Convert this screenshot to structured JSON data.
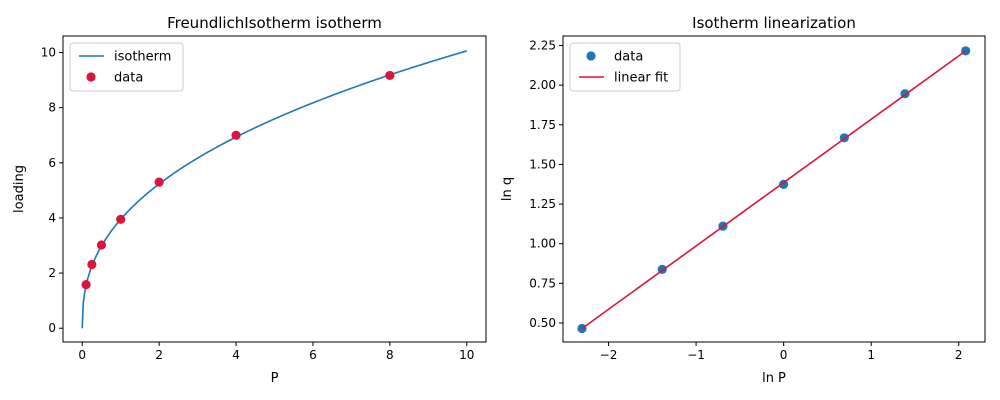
{
  "chart_data": [
    {
      "type": "line",
      "title": "FreundlichIsotherm isotherm",
      "xlabel": "P",
      "ylabel": "loading",
      "xlim": [
        -0.5,
        10.5
      ],
      "ylim": [
        -0.5,
        10.6
      ],
      "xticks": [
        0,
        2,
        4,
        6,
        8,
        10
      ],
      "yticks": [
        0,
        2,
        4,
        6,
        8,
        10
      ],
      "xtick_labels": [
        "0",
        "2",
        "4",
        "6",
        "8",
        "10"
      ],
      "ytick_labels": [
        "0",
        "2",
        "4",
        "6",
        "8",
        "10"
      ],
      "legend": "upper left",
      "series": [
        {
          "name": "isotherm",
          "kind": "line",
          "color": "#1f77b4",
          "model": "freundlich",
          "K": 3.95,
          "n": 0.406,
          "x_range": [
            0,
            10
          ]
        },
        {
          "name": "data",
          "kind": "scatter",
          "color": "#dc143c",
          "x": [
            0.1,
            0.25,
            0.5,
            1,
            2,
            4,
            8
          ],
          "y": [
            1.58,
            2.31,
            3.02,
            3.95,
            5.3,
            7.0,
            9.17
          ]
        }
      ]
    },
    {
      "type": "scatter",
      "title": "Isotherm linearization",
      "xlabel": "ln P",
      "ylabel": "ln q",
      "xlim": [
        -2.52,
        2.3
      ],
      "ylim": [
        0.38,
        2.31
      ],
      "xticks": [
        -2,
        -1,
        0,
        1,
        2
      ],
      "yticks": [
        0.5,
        0.75,
        1.0,
        1.25,
        1.5,
        1.75,
        2.0,
        2.25
      ],
      "xtick_labels": [
        "−2",
        "−1",
        "0",
        "1",
        "2"
      ],
      "ytick_labels": [
        "0.50",
        "0.75",
        "1.00",
        "1.25",
        "1.50",
        "1.75",
        "2.00",
        "2.25"
      ],
      "legend": "upper left",
      "series": [
        {
          "name": "data",
          "kind": "scatter",
          "color": "#1f77b4",
          "x": [
            -2.303,
            -1.386,
            -0.693,
            0.0,
            0.693,
            1.386,
            2.079
          ],
          "y": [
            0.465,
            0.838,
            1.111,
            1.374,
            1.668,
            1.946,
            2.216
          ]
        },
        {
          "name": "linear fit",
          "kind": "line",
          "color": "#dc143c",
          "x": [
            -2.303,
            2.079
          ],
          "y": [
            0.465,
            2.216
          ]
        }
      ]
    }
  ]
}
